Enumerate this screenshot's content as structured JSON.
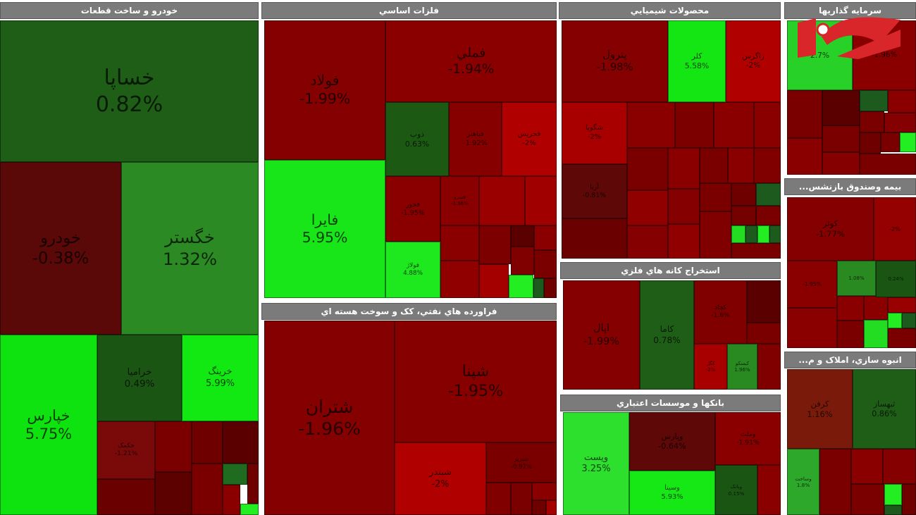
{
  "sectors": [
    {
      "title": "خودرو و ساخت قطعات",
      "tiles": [
        {
          "name": "خساپا",
          "change": "0.82%",
          "color": "#1f5e16"
        },
        {
          "name": "خودرو",
          "change": "-0.38%",
          "color": "#5a0808"
        },
        {
          "name": "خگستر",
          "change": "1.32%",
          "color": "#2c8a24"
        },
        {
          "name": "خپارس",
          "change": "5.75%",
          "color": "#0fe30f"
        },
        {
          "name": "خرامیا",
          "change": "0.49%",
          "color": "#1b5514"
        },
        {
          "name": "خرینگ",
          "change": "5.99%",
          "color": "#12e812"
        },
        {
          "name": "خکمک",
          "change": "-1.21%",
          "color": "#7a0a0a"
        }
      ]
    },
    {
      "title": "فلزات اساسي",
      "tiles": [
        {
          "name": "فولاد",
          "change": "-1.99%",
          "color": "#850000"
        },
        {
          "name": "فملي",
          "change": "-1.94%",
          "color": "#8a0000"
        },
        {
          "name": "فايرا",
          "change": "5.95%",
          "color": "#18e618"
        },
        {
          "name": "ذوب",
          "change": "0.63%",
          "color": "#1c5a14"
        },
        {
          "name": "فباهنر",
          "change": "-1.92%",
          "color": "#870000"
        },
        {
          "name": "فخريس",
          "change": "-2%",
          "color": "#b00000"
        },
        {
          "name": "فخوز",
          "change": "-1.95%",
          "color": "#8a0000"
        },
        {
          "name": "فسرو",
          "change": "-1.96%",
          "color": "#8a0000"
        },
        {
          "name": "فولاژ",
          "change": "4.88%",
          "color": "#1ee81e"
        }
      ]
    },
    {
      "title": "محصولات شيميايي",
      "tiles": [
        {
          "name": "پترول",
          "change": "-1.98%",
          "color": "#850000"
        },
        {
          "name": "کلر",
          "change": "5.58%",
          "color": "#14e614"
        },
        {
          "name": "زاگرس",
          "change": "-2%",
          "color": "#b00000"
        },
        {
          "name": "شگویا",
          "change": "-2%",
          "color": "#a80000"
        },
        {
          "name": "آریا",
          "change": "-0.81%",
          "color": "#5e0808"
        }
      ]
    },
    {
      "title": "سرمايه گذاريها",
      "tiles": [
        {
          "change": "2.7%",
          "color": "#27d127"
        },
        {
          "change": "-1.96%",
          "color": "#8a0000"
        }
      ]
    },
    {
      "title": "...بيمه وصندوق بازنشس",
      "tiles": [
        {
          "name": "کوثر",
          "change": "-1.77%",
          "color": "#850000"
        },
        {
          "change": "-2%",
          "color": "#950000"
        },
        {
          "change": "-1.95%",
          "color": "#8a0000"
        },
        {
          "change": "1.08%",
          "color": "#2a8a22"
        },
        {
          "change": "0.24%",
          "color": "#1b5514"
        }
      ]
    },
    {
      "title": "...انبوه سازي، املاک و م",
      "tiles": [
        {
          "name": "کرفن",
          "change": "1.16%",
          "color": "#7a1a0a"
        },
        {
          "name": "ثبهساز",
          "change": "0.86%",
          "color": "#1f5e16"
        },
        {
          "name": "وساخت",
          "change": "1.8%",
          "color": "#2ea82a"
        }
      ]
    },
    {
      "title": "استخراج کانه هاي فلزي",
      "tiles": [
        {
          "name": "اپال",
          "change": "-1.99%",
          "color": "#850000"
        },
        {
          "name": "کاما",
          "change": "0.78%",
          "color": "#1f5e16"
        },
        {
          "name": "کچاد",
          "change": "-1.6%",
          "color": "#800000"
        },
        {
          "name": "کگل",
          "change": "-2%",
          "color": "#a80000"
        },
        {
          "name": "کیسکو",
          "change": "1.96%",
          "color": "#2a8a22"
        }
      ]
    },
    {
      "title": "بانکها و موسسات اعتباري",
      "tiles": [
        {
          "name": "ويست",
          "change": "3.25%",
          "color": "#2ee02e"
        },
        {
          "name": "وپارس",
          "change": "-0.64%",
          "color": "#5e0808"
        },
        {
          "name": "وسينا",
          "change": "5.93%",
          "color": "#16e816"
        },
        {
          "name": "وملت",
          "change": "-1.91%",
          "color": "#8a0000"
        },
        {
          "name": "وبانک",
          "change": "0.15%",
          "color": "#1b5514"
        }
      ]
    },
    {
      "title": "فراورده هاي نفتي، کک و سوخت هسته اي",
      "tiles": [
        {
          "name": "شتران",
          "change": "-1.96%",
          "color": "#850000"
        },
        {
          "name": "شپنا",
          "change": "-1.95%",
          "color": "#870000"
        },
        {
          "name": "شبندر",
          "change": "-2%",
          "color": "#b00000"
        },
        {
          "name": "شبریز",
          "change": "-0.97%",
          "color": "#7a0000"
        }
      ]
    }
  ]
}
